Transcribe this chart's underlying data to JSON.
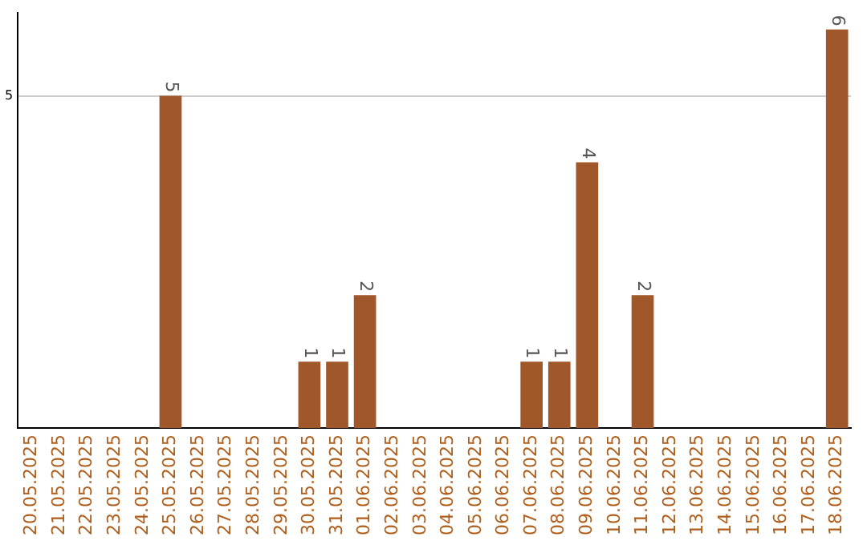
{
  "chart_data": {
    "type": "bar",
    "categories": [
      "20.05.2025",
      "21.05.2025",
      "22.05.2025",
      "23.05.2025",
      "24.05.2025",
      "25.05.2025",
      "26.05.2025",
      "27.05.2025",
      "28.05.2025",
      "29.05.2025",
      "30.05.2025",
      "31.05.2025",
      "01.06.2025",
      "02.06.2025",
      "03.06.2025",
      "04.06.2025",
      "05.06.2025",
      "06.06.2025",
      "07.06.2025",
      "08.06.2025",
      "09.06.2025",
      "10.06.2025",
      "11.06.2025",
      "12.06.2025",
      "13.06.2025",
      "14.06.2025",
      "15.06.2025",
      "16.06.2025",
      "17.06.2025",
      "18.06.2025"
    ],
    "values": [
      null,
      null,
      null,
      null,
      null,
      5,
      null,
      null,
      null,
      null,
      1,
      1,
      2,
      null,
      null,
      null,
      null,
      null,
      1,
      1,
      4,
      null,
      2,
      null,
      null,
      null,
      null,
      null,
      null,
      6
    ],
    "color": "#a0582b",
    "ylim": [
      0,
      6.25
    ],
    "yticks": [
      5
    ],
    "grid": "y",
    "data_labels": true
  }
}
